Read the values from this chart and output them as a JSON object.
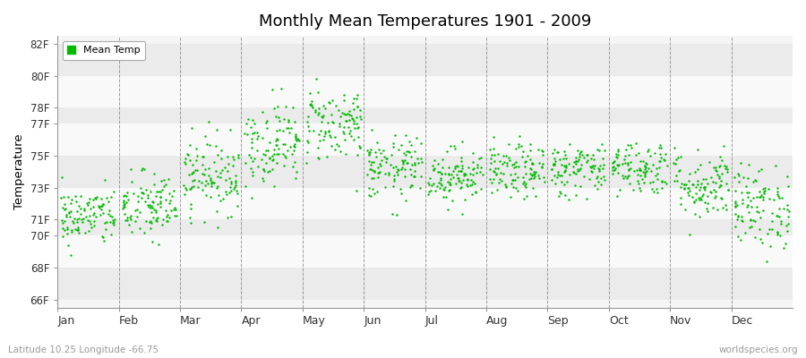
{
  "title": "Monthly Mean Temperatures 1901 - 2009",
  "ylabel": "Temperature",
  "xlabel_bottom": "Latitude 10.25 Longitude -66.75",
  "xlabel_right": "worldspecies.org",
  "legend_label": "Mean Temp",
  "dot_color": "#00bb00",
  "bg_color": "#f5f5f5",
  "band_colors": [
    "#ebebeb",
    "#f9f9f9"
  ],
  "grid_color": "#777777",
  "yticks": [
    66,
    68,
    70,
    71,
    73,
    75,
    77,
    78,
    80,
    82
  ],
  "ytick_labels": [
    "66F",
    "68F",
    "70F",
    "71F",
    "73F",
    "75F",
    "77F",
    "78F",
    "80F",
    "82F"
  ],
  "ylim": [
    65.5,
    82.5
  ],
  "months": [
    "Jan",
    "Feb",
    "Mar",
    "Apr",
    "May",
    "Jun",
    "Jul",
    "Aug",
    "Sep",
    "Oct",
    "Nov",
    "Dec"
  ],
  "seed": 42,
  "num_years": 109,
  "monthly_mean": [
    71.2,
    71.8,
    73.8,
    75.8,
    77.0,
    74.2,
    73.8,
    74.0,
    74.2,
    74.3,
    73.2,
    71.8
  ],
  "monthly_std": [
    0.9,
    1.1,
    1.2,
    1.3,
    1.2,
    1.0,
    0.85,
    0.85,
    0.85,
    0.85,
    1.1,
    1.3
  ]
}
